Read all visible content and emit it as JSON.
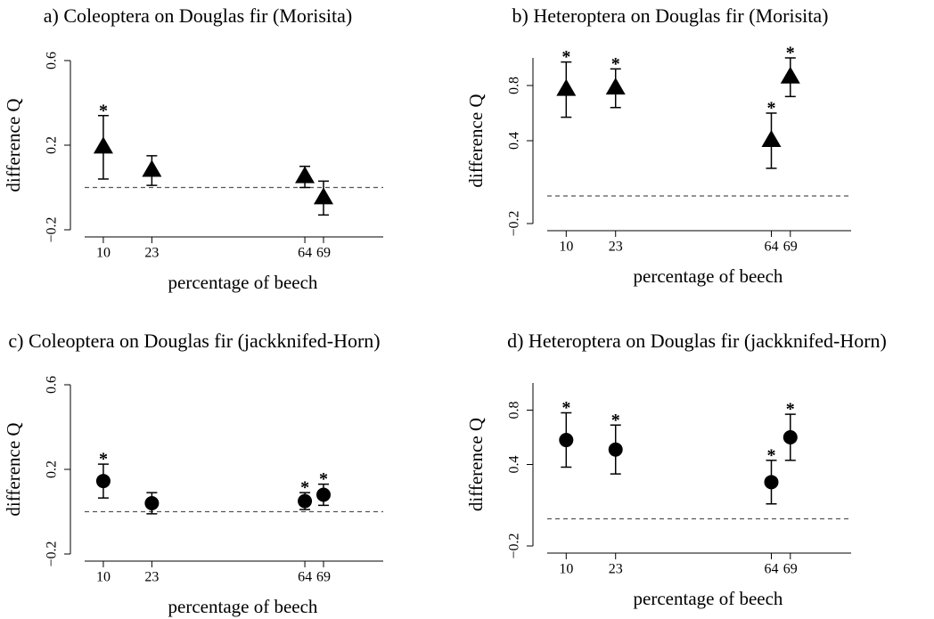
{
  "chart_data": [
    {
      "type": "errorpoint",
      "title": "a) Coleoptera on Douglas fir (Morisita)",
      "xlabel": "percentage of beech",
      "ylabel": "difference Q",
      "x": [
        10,
        23,
        64,
        69
      ],
      "values": [
        0.19,
        0.08,
        0.05,
        -0.05
      ],
      "errors": [
        0.15,
        0.07,
        0.05,
        0.08
      ],
      "value_annotations": [
        "*",
        null,
        null,
        null
      ],
      "marker": "triangle",
      "color": "#000000",
      "reference_line": 0,
      "xlim": [
        5,
        85
      ],
      "xticks": [
        10,
        23,
        64,
        69
      ],
      "ylim": [
        -0.2,
        0.6
      ],
      "yticks": [
        {
          "value": -0.2,
          "label": "−0.2"
        },
        0.2,
        0.6
      ]
    },
    {
      "type": "errorpoint",
      "title": "b) Heteroptera on Douglas fir (Morisita)",
      "xlabel": "percentage of beech",
      "ylabel": "difference Q",
      "x": [
        10,
        23,
        64,
        69
      ],
      "values": [
        0.77,
        0.78,
        0.4,
        0.86
      ],
      "errors": [
        0.2,
        0.14,
        0.2,
        0.14
      ],
      "value_annotations": [
        "*",
        "*",
        "*",
        "*"
      ],
      "marker": "triangle",
      "color": "#000000",
      "reference_line": 0,
      "xlim": [
        5,
        85
      ],
      "xticks": [
        10,
        23,
        64,
        69
      ],
      "ylim": [
        -0.2,
        1.0
      ],
      "yticks": [
        {
          "value": -0.2,
          "label": "−0.2"
        },
        0.4,
        0.8
      ]
    },
    {
      "type": "errorpoint",
      "title": "c) Coleoptera on Douglas fir (jackknifed-Horn)",
      "xlabel": "percentage of beech",
      "ylabel": "difference Q",
      "x": [
        10,
        23,
        64,
        69
      ],
      "values": [
        0.145,
        0.04,
        0.05,
        0.08
      ],
      "errors": [
        0.08,
        0.05,
        0.04,
        0.05
      ],
      "value_annotations": [
        "*",
        null,
        "*",
        "*"
      ],
      "marker": "circle",
      "color": "#000000",
      "reference_line": 0,
      "xlim": [
        5,
        85
      ],
      "xticks": [
        10,
        23,
        64,
        69
      ],
      "ylim": [
        -0.2,
        0.6
      ],
      "yticks": [
        {
          "value": -0.2,
          "label": "−0.2"
        },
        0.2,
        0.6
      ]
    },
    {
      "type": "errorpoint",
      "title": "d) Heteroptera on Douglas fir (jackknifed-Horn)",
      "xlabel": "percentage of beech",
      "ylabel": "difference Q",
      "x": [
        10,
        23,
        64,
        69
      ],
      "values": [
        0.58,
        0.51,
        0.27,
        0.6
      ],
      "errors": [
        0.2,
        0.18,
        0.16,
        0.17
      ],
      "value_annotations": [
        "*",
        "*",
        "*",
        "*"
      ],
      "marker": "circle",
      "color": "#000000",
      "reference_line": 0,
      "xlim": [
        5,
        85
      ],
      "xticks": [
        10,
        23,
        64,
        69
      ],
      "ylim": [
        -0.2,
        1.0
      ],
      "yticks": [
        {
          "value": -0.2,
          "label": "−0.2"
        },
        0.4,
        0.8
      ]
    }
  ]
}
